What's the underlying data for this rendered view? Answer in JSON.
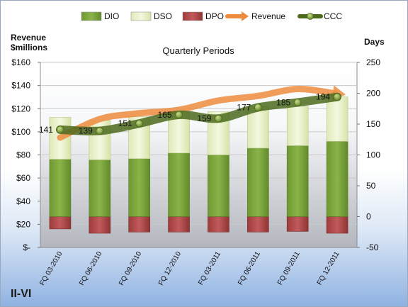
{
  "company": "II-VI",
  "chart_data": {
    "type": "bar",
    "title": "Quarterly Periods",
    "categories": [
      "FQ 03-2010",
      "FQ 06-2010",
      "FQ 09-2010",
      "FQ 12-2010",
      "FQ 03-2011",
      "FQ 06-2011",
      "FQ 09-2011",
      "FQ 12-2011"
    ],
    "y_left": {
      "label": [
        "Revenue",
        "$millions"
      ],
      "ylim": [
        0,
        160
      ],
      "ticks": [
        0,
        20,
        40,
        60,
        80,
        100,
        120,
        140,
        160
      ],
      "tick_labels": [
        "$-",
        "$20",
        "$40",
        "$60",
        "$80",
        "$100",
        "$120",
        "$140",
        "$160"
      ]
    },
    "y_right": {
      "label": "Days",
      "ylim": [
        -50,
        250
      ],
      "ticks": [
        -50,
        0,
        50,
        100,
        150,
        200,
        250
      ],
      "tick_labels": [
        "-50",
        "0",
        "50",
        "100",
        "150",
        "200",
        "250"
      ]
    },
    "series": [
      {
        "name": "DIO",
        "type": "stacked-bar",
        "axis": "right",
        "color": "#7aa23a",
        "values": [
          93,
          92,
          94,
          103,
          100,
          111,
          115,
          122
        ]
      },
      {
        "name": "DSO",
        "type": "stacked-bar",
        "axis": "right",
        "color": "#e6f0c6",
        "values": [
          68,
          64,
          68,
          67,
          70,
          67,
          64,
          72
        ]
      },
      {
        "name": "DPO",
        "type": "negative-bar",
        "axis": "right",
        "color": "#b04a4a",
        "values": [
          20,
          27,
          25,
          25,
          25,
          25,
          24,
          27
        ]
      },
      {
        "name": "Revenue",
        "type": "line",
        "axis": "left",
        "color": "#ed8c3e",
        "values": [
          95,
          111,
          116,
          119,
          127,
          131,
          137,
          133
        ]
      },
      {
        "name": "CCC",
        "type": "line",
        "axis": "right",
        "color": "#4c6a1e",
        "values": [
          141,
          139,
          151,
          165,
          159,
          177,
          185,
          194
        ],
        "labels": [
          "141",
          "139",
          "151",
          "165",
          "159",
          "177",
          "185",
          "194"
        ]
      }
    ],
    "legend": {
      "position": "top",
      "items": [
        "DIO",
        "DSO",
        "DPO",
        "Revenue",
        "CCC"
      ]
    },
    "grid": true
  }
}
